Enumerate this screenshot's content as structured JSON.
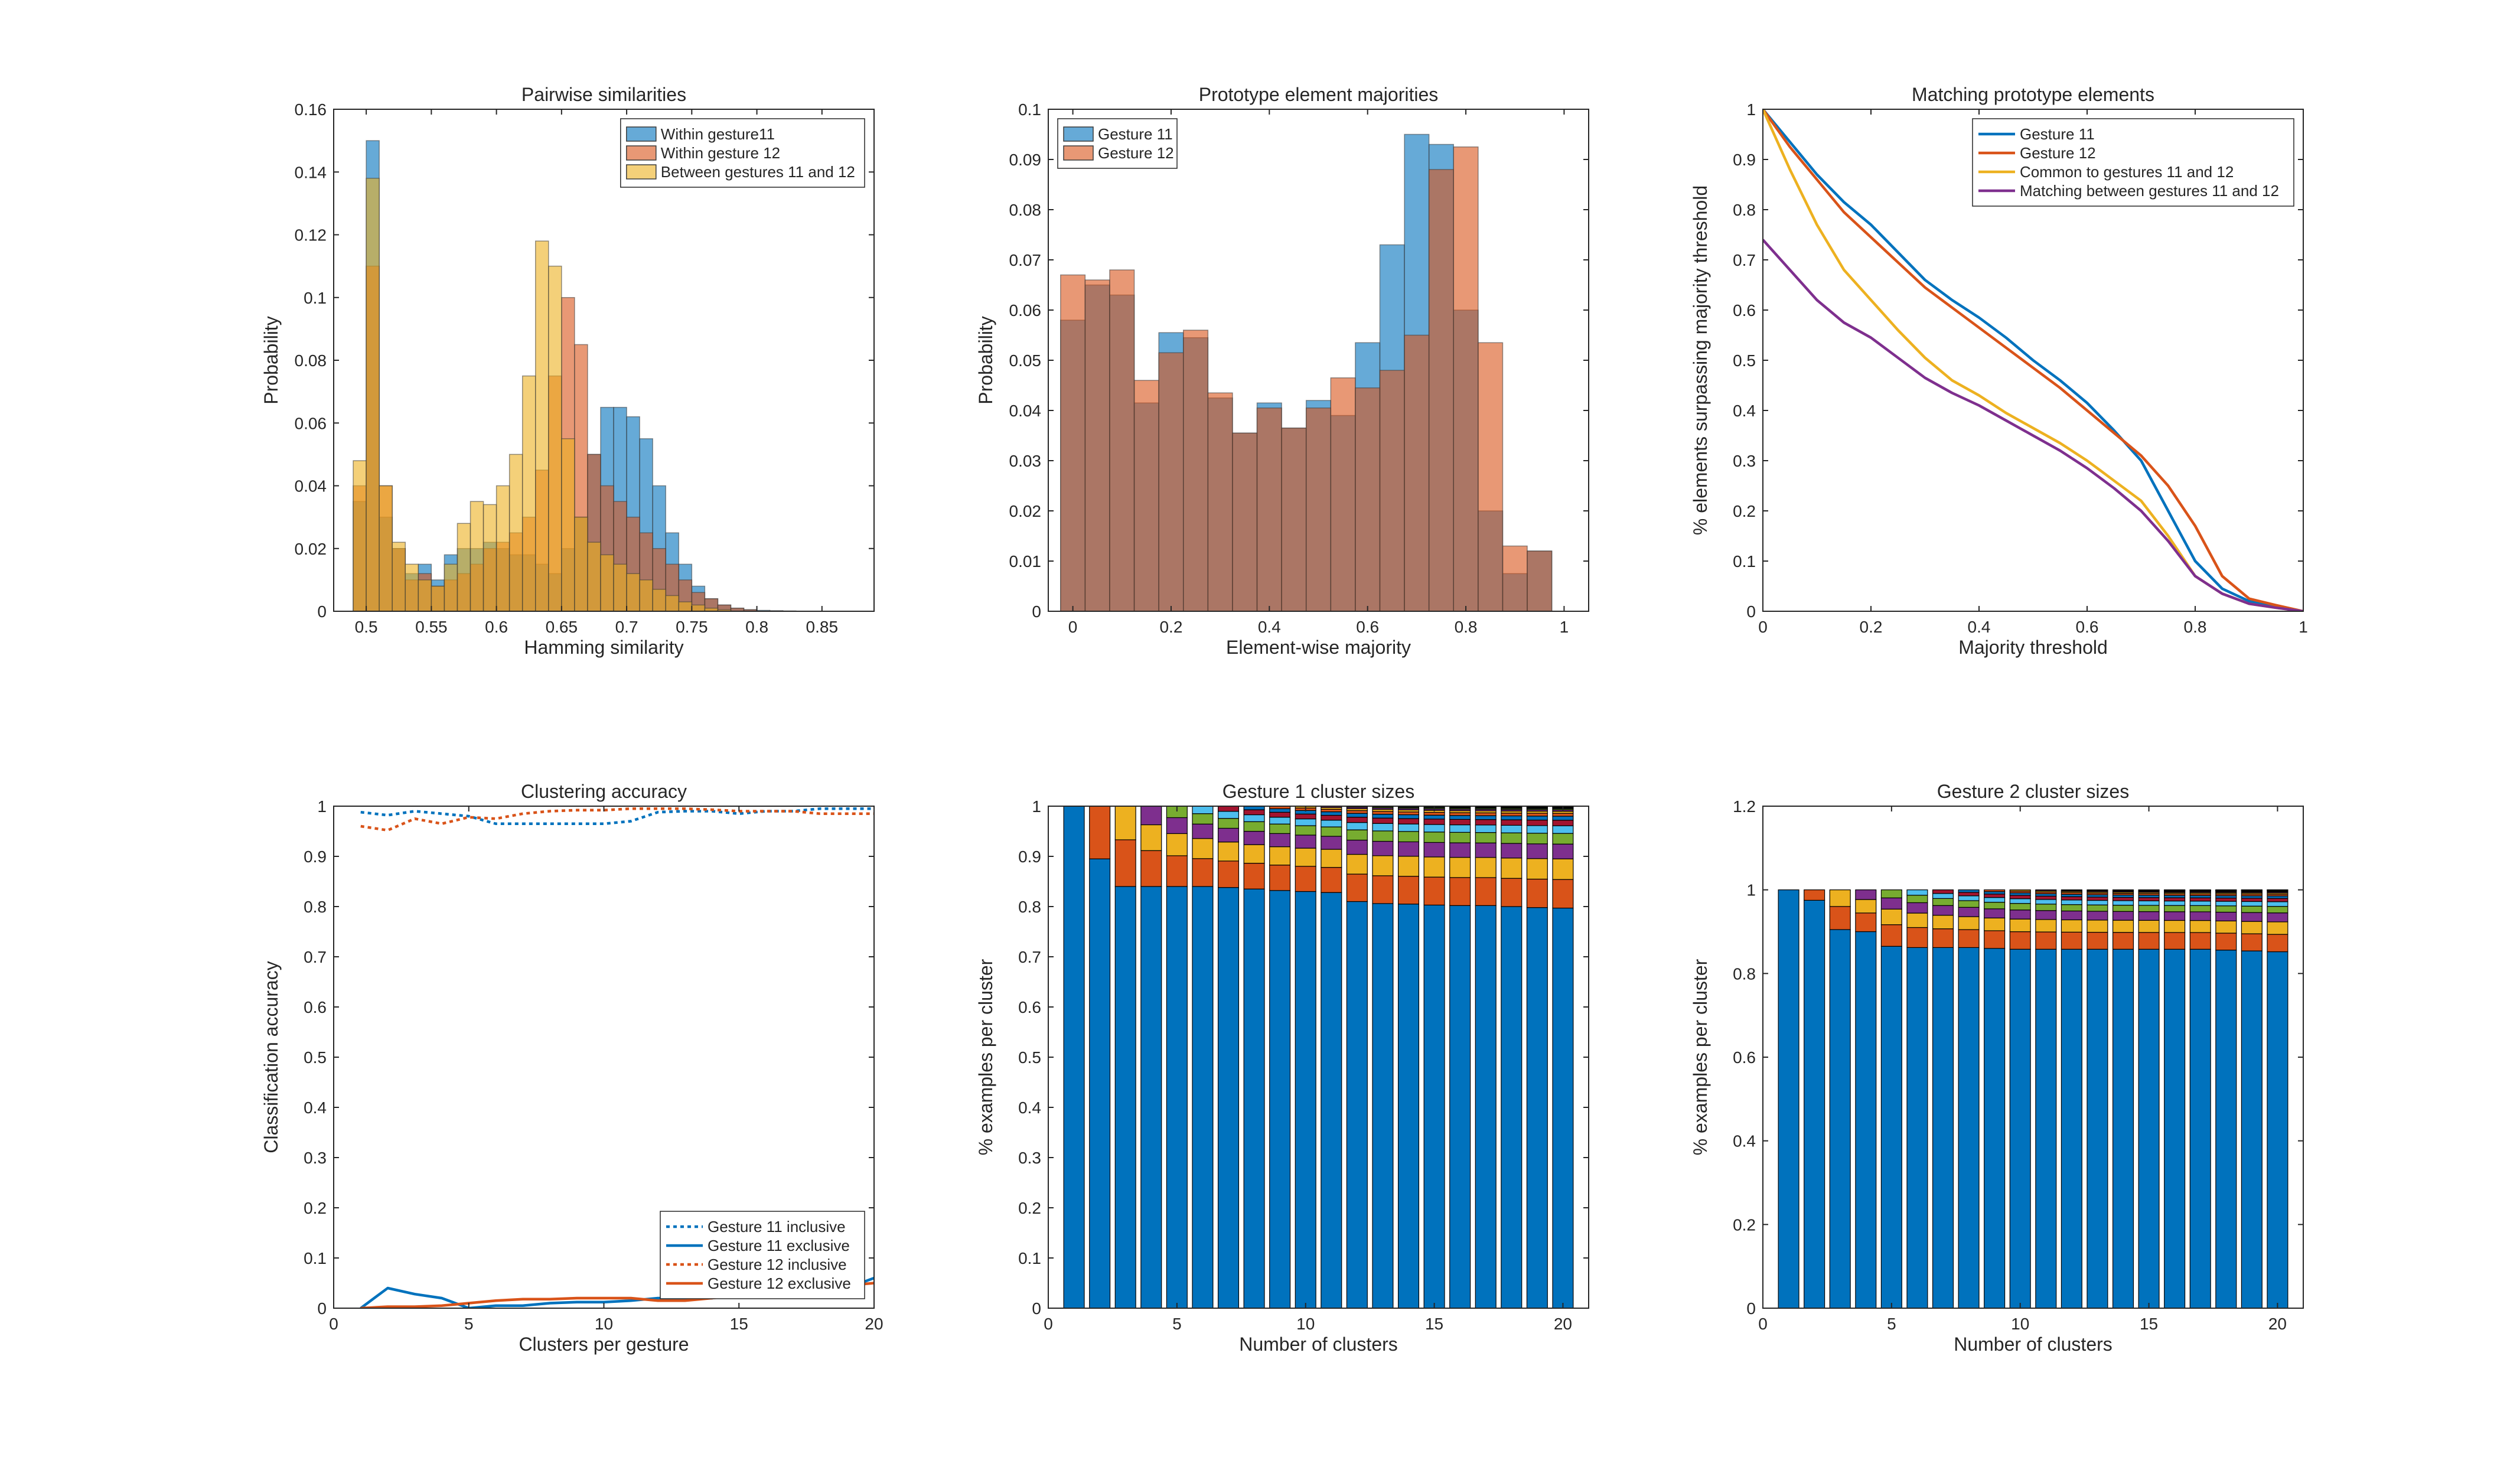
{
  "charts": [
    {
      "type": "histogram",
      "title": "Pairwise similarities",
      "xlabel": "Hamming similarity",
      "ylabel": "Probability",
      "xlim": [
        0.475,
        0.89
      ],
      "ylim": [
        0,
        0.16
      ],
      "xticks": [
        0.5,
        0.55,
        0.6,
        0.65,
        0.7,
        0.75,
        0.8,
        0.85
      ],
      "xticklabels": [
        "0.5",
        "0.55",
        "0.6",
        "0.65",
        "0.7",
        "0.75",
        "0.8",
        "0.85"
      ],
      "yticks": [
        0,
        0.02,
        0.04,
        0.06,
        0.08,
        0.1,
        0.12,
        0.14,
        0.16
      ],
      "yticklabels": [
        "0",
        "0.02",
        "0.04",
        "0.06",
        "0.08",
        "0.1",
        "0.12",
        "0.14",
        "0.16"
      ],
      "bin_start": 0.49,
      "bin_width": 0.01,
      "legend_position": "top-right",
      "series": [
        {
          "name": "Within gesture11",
          "color": "#0072BD",
          "values": [
            0.035,
            0.15,
            0.03,
            0.02,
            0.012,
            0.015,
            0.01,
            0.018,
            0.02,
            0.02,
            0.022,
            0.02,
            0.018,
            0.018,
            0.015,
            0.012,
            0.02,
            0.03,
            0.05,
            0.065,
            0.065,
            0.062,
            0.055,
            0.04,
            0.025,
            0.015,
            0.008,
            0.004,
            0.002,
            0.001,
            0.0005,
            0.0003,
            0.0002,
            0.0001
          ]
        },
        {
          "name": "Within gesture 12",
          "color": "#D95319",
          "values": [
            0.04,
            0.11,
            0.04,
            0.02,
            0.01,
            0.012,
            0.008,
            0.01,
            0.012,
            0.015,
            0.02,
            0.022,
            0.025,
            0.03,
            0.045,
            0.075,
            0.1,
            0.085,
            0.05,
            0.04,
            0.035,
            0.03,
            0.025,
            0.02,
            0.015,
            0.01,
            0.006,
            0.004,
            0.002,
            0.001,
            0.0005,
            0,
            0,
            0
          ]
        },
        {
          "name": "Between gestures 11 and 12",
          "color": "#EDB120",
          "values": [
            0.048,
            0.138,
            0.04,
            0.022,
            0.015,
            0.01,
            0.008,
            0.015,
            0.028,
            0.035,
            0.034,
            0.04,
            0.05,
            0.075,
            0.118,
            0.11,
            0.055,
            0.03,
            0.022,
            0.018,
            0.015,
            0.012,
            0.01,
            0.007,
            0.005,
            0.003,
            0.002,
            0.001,
            0.0005,
            0,
            0,
            0,
            0,
            0
          ]
        }
      ]
    },
    {
      "type": "histogram",
      "title": "Prototype element majorities",
      "xlabel": "Element-wise majority",
      "ylabel": "Probability",
      "xlim": [
        -0.05,
        1.05
      ],
      "ylim": [
        0,
        0.1
      ],
      "xticks": [
        0,
        0.2,
        0.4,
        0.6,
        0.8,
        1
      ],
      "xticklabels": [
        "0",
        "0.2",
        "0.4",
        "0.6",
        "0.8",
        "1"
      ],
      "yticks": [
        0,
        0.01,
        0.02,
        0.03,
        0.04,
        0.05,
        0.06,
        0.07,
        0.08,
        0.09,
        0.1
      ],
      "yticklabels": [
        "0",
        "0.01",
        "0.02",
        "0.03",
        "0.04",
        "0.05",
        "0.06",
        "0.07",
        "0.08",
        "0.09",
        "0.1"
      ],
      "bin_start": -0.025,
      "bin_width": 0.05,
      "legend_position": "top-left",
      "series": [
        {
          "name": "Gesture 11",
          "color": "#0072BD",
          "values": [
            0.058,
            0.065,
            0.063,
            0.0415,
            0.0555,
            0.0545,
            0.0425,
            0.0355,
            0.0415,
            0.0365,
            0.042,
            0.039,
            0.0535,
            0.073,
            0.095,
            0.093,
            0.06,
            0.02,
            0.0075,
            0.012
          ]
        },
        {
          "name": "Gesture 12",
          "color": "#D95319",
          "values": [
            0.067,
            0.066,
            0.068,
            0.046,
            0.0515,
            0.056,
            0.0435,
            0.0355,
            0.0405,
            0.0365,
            0.0405,
            0.0465,
            0.0445,
            0.048,
            0.055,
            0.088,
            0.0925,
            0.0535,
            0.013,
            0.012
          ]
        }
      ]
    },
    {
      "type": "line",
      "title": "Matching prototype elements",
      "xlabel": "Majority threshold",
      "ylabel": "% elements surpassing majority threshold",
      "xlim": [
        0,
        1
      ],
      "ylim": [
        0,
        1
      ],
      "xticks": [
        0,
        0.2,
        0.4,
        0.6,
        0.8,
        1
      ],
      "xticklabels": [
        "0",
        "0.2",
        "0.4",
        "0.6",
        "0.8",
        "1"
      ],
      "yticks": [
        0,
        0.1,
        0.2,
        0.3,
        0.4,
        0.5,
        0.6,
        0.7,
        0.8,
        0.9,
        1
      ],
      "yticklabels": [
        "0",
        "0.1",
        "0.2",
        "0.3",
        "0.4",
        "0.5",
        "0.6",
        "0.7",
        "0.8",
        "0.9",
        "1"
      ],
      "legend_position": "top-right",
      "x": [
        0,
        0.05,
        0.1,
        0.15,
        0.2,
        0.25,
        0.3,
        0.35,
        0.4,
        0.45,
        0.5,
        0.55,
        0.6,
        0.65,
        0.7,
        0.75,
        0.8,
        0.85,
        0.9,
        0.95,
        1
      ],
      "series": [
        {
          "name": "Gesture 11",
          "color": "#0072BD",
          "dash": "",
          "values": [
            1,
            0.935,
            0.87,
            0.815,
            0.77,
            0.715,
            0.66,
            0.62,
            0.585,
            0.545,
            0.5,
            0.46,
            0.415,
            0.36,
            0.3,
            0.2,
            0.1,
            0.045,
            0.02,
            0.01,
            0
          ]
        },
        {
          "name": "Gesture 12",
          "color": "#D95319",
          "dash": "",
          "values": [
            1,
            0.925,
            0.86,
            0.795,
            0.745,
            0.695,
            0.645,
            0.605,
            0.565,
            0.525,
            0.485,
            0.445,
            0.4,
            0.355,
            0.31,
            0.25,
            0.17,
            0.07,
            0.025,
            0.012,
            0
          ]
        },
        {
          "name": "Common to gestures 11 and 12",
          "color": "#EDB120",
          "dash": "",
          "values": [
            1,
            0.88,
            0.77,
            0.68,
            0.62,
            0.56,
            0.505,
            0.46,
            0.43,
            0.395,
            0.365,
            0.335,
            0.3,
            0.26,
            0.22,
            0.15,
            0.07,
            0.035,
            0.015,
            0.007,
            0
          ]
        },
        {
          "name": "Matching between gestures 11 and 12",
          "color": "#7E2F8E",
          "dash": "",
          "values": [
            0.74,
            0.68,
            0.62,
            0.575,
            0.545,
            0.505,
            0.465,
            0.435,
            0.41,
            0.38,
            0.35,
            0.32,
            0.285,
            0.245,
            0.2,
            0.14,
            0.07,
            0.035,
            0.015,
            0.007,
            0
          ]
        }
      ]
    },
    {
      "type": "line",
      "title": "Clustering accuracy",
      "xlabel": "Clusters per gesture",
      "ylabel": "Classification accuracy",
      "xlim": [
        0,
        20
      ],
      "ylim": [
        0,
        1
      ],
      "xticks": [
        0,
        5,
        10,
        15,
        20
      ],
      "xticklabels": [
        "0",
        "5",
        "10",
        "15",
        "20"
      ],
      "yticks": [
        0,
        0.1,
        0.2,
        0.3,
        0.4,
        0.5,
        0.6,
        0.7,
        0.8,
        0.9,
        1
      ],
      "yticklabels": [
        "0",
        "0.1",
        "0.2",
        "0.3",
        "0.4",
        "0.5",
        "0.6",
        "0.7",
        "0.8",
        "0.9",
        "1"
      ],
      "legend_position": "bottom-right",
      "x": [
        1,
        2,
        3,
        4,
        5,
        6,
        7,
        8,
        9,
        10,
        11,
        12,
        13,
        14,
        15,
        16,
        17,
        18,
        19,
        20
      ],
      "series": [
        {
          "name": "Gesture 11 inclusive",
          "color": "#0072BD",
          "dash": "6,6",
          "values": [
            0.988,
            0.982,
            0.99,
            0.985,
            0.98,
            0.965,
            0.965,
            0.965,
            0.965,
            0.965,
            0.97,
            0.988,
            0.99,
            0.99,
            0.985,
            0.99,
            0.99,
            0.995,
            0.995,
            0.995
          ]
        },
        {
          "name": "Gesture 11 exclusive",
          "color": "#0072BD",
          "dash": "",
          "values": [
            0,
            0.04,
            0.028,
            0.02,
            0,
            0.005,
            0.005,
            0.01,
            0.012,
            0.012,
            0.015,
            0.02,
            0.02,
            0.02,
            0.03,
            0.03,
            0.03,
            0.035,
            0.04,
            0.06
          ]
        },
        {
          "name": "Gesture 12 inclusive",
          "color": "#D95319",
          "dash": "6,6",
          "values": [
            0.96,
            0.952,
            0.975,
            0.965,
            0.978,
            0.975,
            0.985,
            0.99,
            0.992,
            0.992,
            0.995,
            0.995,
            0.995,
            0.993,
            0.99,
            0.99,
            0.99,
            0.985,
            0.985,
            0.985
          ]
        },
        {
          "name": "Gesture 12 exclusive",
          "color": "#D95319",
          "dash": "",
          "values": [
            0,
            0.003,
            0.003,
            0.005,
            0.01,
            0.015,
            0.018,
            0.018,
            0.02,
            0.02,
            0.02,
            0.015,
            0.015,
            0.02,
            0.025,
            0.03,
            0.035,
            0.04,
            0.045,
            0.05
          ]
        }
      ]
    },
    {
      "type": "stacked_bar",
      "title": "Gesture 1 cluster sizes",
      "xlabel": "Number of clusters",
      "ylabel": "% examples per cluster",
      "xlim": [
        0,
        21
      ],
      "ylim": [
        0,
        1
      ],
      "xticks": [
        0,
        5,
        10,
        15,
        20
      ],
      "xticklabels": [
        "0",
        "5",
        "10",
        "15",
        "20"
      ],
      "yticks": [
        0,
        0.1,
        0.2,
        0.3,
        0.4,
        0.5,
        0.6,
        0.7,
        0.8,
        0.9,
        1
      ],
      "yticklabels": [
        "0",
        "0.1",
        "0.2",
        "0.3",
        "0.4",
        "0.5",
        "0.6",
        "0.7",
        "0.8",
        "0.9",
        "1"
      ],
      "categories": [
        1,
        2,
        3,
        4,
        5,
        6,
        7,
        8,
        9,
        10,
        11,
        12,
        13,
        14,
        15,
        16,
        17,
        18,
        19,
        20
      ],
      "largest_cluster": [
        1,
        0.895,
        0.84,
        0.84,
        0.84,
        0.84,
        0.838,
        0.835,
        0.832,
        0.83,
        0.828,
        0.81,
        0.806,
        0.805,
        0.803,
        0.802,
        0.802,
        0.8,
        0.798,
        0.797
      ],
      "segment_colors": [
        "#0072BD",
        "#D95319",
        "#EDB120",
        "#7E2F8E",
        "#77AC30",
        "#4DBEEE",
        "#A2142F",
        "#0072BD",
        "#D95319",
        "#EDB120",
        "#7E2F8E",
        "#77AC30",
        "#4DBEEE",
        "#A2142F",
        "#0072BD",
        "#D95319",
        "#EDB120",
        "#7E2F8E",
        "#77AC30",
        "#4DBEEE"
      ]
    },
    {
      "type": "stacked_bar",
      "title": "Gesture 2 cluster sizes",
      "xlabel": "Number of clusters",
      "ylabel": "% examples per cluster",
      "xlim": [
        0,
        21
      ],
      "ylim": [
        0,
        1.2
      ],
      "xticks": [
        0,
        5,
        10,
        15,
        20
      ],
      "xticklabels": [
        "0",
        "5",
        "10",
        "15",
        "20"
      ],
      "yticks": [
        0,
        0.2,
        0.4,
        0.6,
        0.8,
        1,
        1.2
      ],
      "yticklabels": [
        "0",
        "0.2",
        "0.4",
        "0.6",
        "0.8",
        "1",
        "1.2"
      ],
      "categories": [
        1,
        2,
        3,
        4,
        5,
        6,
        7,
        8,
        9,
        10,
        11,
        12,
        13,
        14,
        15,
        16,
        17,
        18,
        19,
        20
      ],
      "largest_cluster": [
        1,
        0.975,
        0.905,
        0.9,
        0.865,
        0.862,
        0.862,
        0.862,
        0.86,
        0.858,
        0.858,
        0.858,
        0.858,
        0.858,
        0.858,
        0.858,
        0.858,
        0.856,
        0.854,
        0.852
      ],
      "segment_colors": [
        "#0072BD",
        "#D95319",
        "#EDB120",
        "#7E2F8E",
        "#77AC30",
        "#4DBEEE",
        "#A2142F",
        "#0072BD",
        "#D95319",
        "#EDB120",
        "#7E2F8E",
        "#77AC30",
        "#4DBEEE",
        "#A2142F",
        "#0072BD",
        "#D95319",
        "#EDB120",
        "#7E2F8E",
        "#77AC30",
        "#4DBEEE"
      ]
    }
  ]
}
